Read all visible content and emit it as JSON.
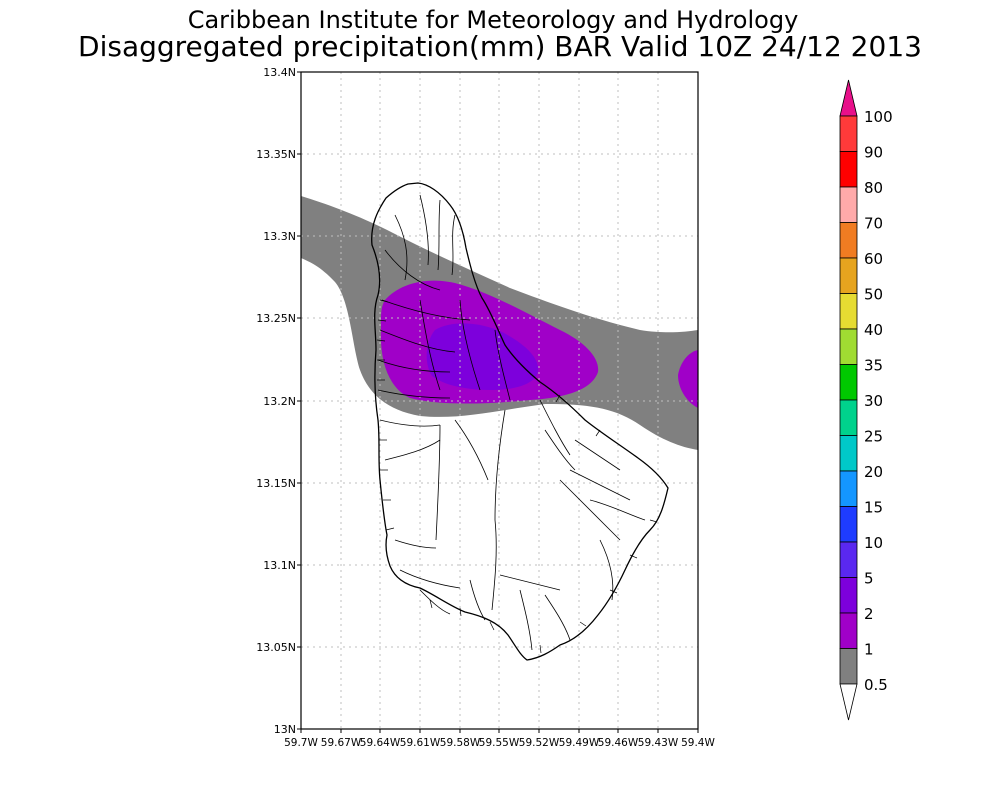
{
  "title": {
    "line1": "Caribbean Institute for Meteorology and Hydrology",
    "line2": "Disaggregated precipitation(mm) BAR Valid 10Z 24/12 2013"
  },
  "axes": {
    "lat_labels": [
      "13.4N",
      "13.35N",
      "13.3N",
      "13.25N",
      "13.2N",
      "13.15N",
      "13.1N",
      "13.05N",
      "13N"
    ],
    "lon_labels": [
      "59.7W",
      "59.67W",
      "59.64W",
      "59.61W",
      "59.58W",
      "59.55W",
      "59.52W",
      "59.49W",
      "59.46W",
      "59.43W",
      "59.4W"
    ]
  },
  "legend": {
    "levels": [
      {
        "label": "",
        "color": "#e8108a"
      },
      {
        "label": "100",
        "color": "#ff3a3a"
      },
      {
        "label": "90",
        "color": "#ff0000"
      },
      {
        "label": "80",
        "color": "#ffaaaa"
      },
      {
        "label": "70",
        "color": "#f07c22"
      },
      {
        "label": "60",
        "color": "#e6a41f"
      },
      {
        "label": "50",
        "color": "#e6dc32"
      },
      {
        "label": "40",
        "color": "#a0dc32"
      },
      {
        "label": "35",
        "color": "#00c800"
      },
      {
        "label": "30",
        "color": "#00d28c"
      },
      {
        "label": "25",
        "color": "#00c8c8"
      },
      {
        "label": "20",
        "color": "#1496ff"
      },
      {
        "label": "15",
        "color": "#1e3cff"
      },
      {
        "label": "10",
        "color": "#5a28f0"
      },
      {
        "label": "5",
        "color": "#7d00dc"
      },
      {
        "label": "2",
        "color": "#a000c8"
      },
      {
        "label": "1",
        "color": "#808080"
      },
      {
        "label": "0.5",
        "color": "#ffffff"
      }
    ]
  },
  "colors": {
    "gray_band": "#808080",
    "purple_light": "#a000c8",
    "purple_dark": "#7d00dc"
  }
}
